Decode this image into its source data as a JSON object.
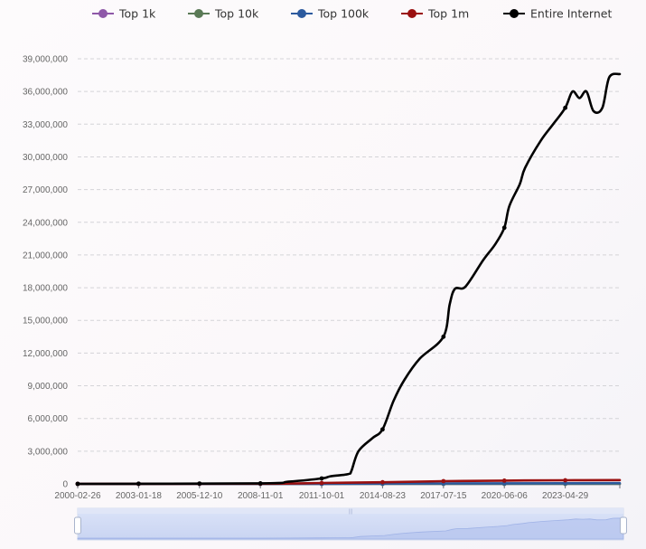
{
  "chart_data": {
    "type": "line",
    "legend_position": "top",
    "grid": true,
    "ylim": [
      0,
      39000000
    ],
    "y_ticks": [
      "0",
      "3,000,000",
      "6,000,000",
      "9,000,000",
      "12,000,000",
      "15,000,000",
      "18,000,000",
      "21,000,000",
      "24,000,000",
      "27,000,000",
      "30,000,000",
      "33,000,000",
      "36,000,000",
      "39,000,000"
    ],
    "y_tick_values": [
      0,
      3000000,
      6000000,
      9000000,
      12000000,
      15000000,
      18000000,
      21000000,
      24000000,
      27000000,
      30000000,
      33000000,
      36000000,
      39000000
    ],
    "x_ticks": [
      "2000-02-26",
      "2003-01-18",
      "2005-12-10",
      "2008-11-01",
      "2011-10-01",
      "2014-08-23",
      "2017-07-15",
      "2020-06-06",
      "2023-04-29"
    ],
    "x_range": [
      "2000-02-26",
      "2025-12-01"
    ],
    "series": [
      {
        "name": "Top 1k",
        "color": "#8e58a8",
        "x": [
          "2000-02-26",
          "2025-12-01"
        ],
        "values": [
          0,
          0
        ]
      },
      {
        "name": "Top 10k",
        "color": "#5a7a56",
        "x": [
          "2000-02-26",
          "2025-12-01"
        ],
        "values": [
          0,
          0
        ]
      },
      {
        "name": "Top 100k",
        "color": "#2c5a9e",
        "x": [
          "2000-02-26",
          "2011-10-01",
          "2017-07-15",
          "2023-04-29",
          "2025-12-01"
        ],
        "values": [
          0,
          10000,
          40000,
          60000,
          70000
        ]
      },
      {
        "name": "Top 1m",
        "color": "#9a1010",
        "x": [
          "2000-02-26",
          "2008-11-01",
          "2011-10-01",
          "2014-08-23",
          "2017-07-15",
          "2020-06-06",
          "2023-04-29",
          "2025-12-01"
        ],
        "values": [
          0,
          20000,
          80000,
          150000,
          250000,
          300000,
          330000,
          350000
        ]
      },
      {
        "name": "Entire Internet",
        "color": "#000000",
        "x": [
          "2000-02-26",
          "2008-11-01",
          "2010-03-01",
          "2011-10-01",
          "2012-03-01",
          "2013-01-01",
          "2013-03-01",
          "2013-07-01",
          "2014-03-01",
          "2014-08-23",
          "2015-03-01",
          "2015-09-01",
          "2016-06-01",
          "2017-07-15",
          "2017-11-01",
          "2018-02-01",
          "2018-08-01",
          "2019-06-01",
          "2020-01-01",
          "2020-06-06",
          "2020-09-01",
          "2021-03-01",
          "2021-06-01",
          "2022-03-01",
          "2022-10-01",
          "2023-04-29",
          "2023-09-01",
          "2024-01-01",
          "2024-05-01",
          "2024-09-01",
          "2025-02-01",
          "2025-06-01",
          "2025-12-01"
        ],
        "values": [
          0,
          50000,
          200000,
          500000,
          700000,
          900000,
          1200000,
          3000000,
          4200000,
          5000000,
          7600000,
          9500000,
          11500000,
          13500000,
          16500000,
          17900000,
          18100000,
          20500000,
          22000000,
          23500000,
          25500000,
          27500000,
          29000000,
          31500000,
          33000000,
          34500000,
          36000000,
          35400000,
          36000000,
          34200000,
          34500000,
          37300000,
          37600000
        ]
      }
    ]
  }
}
